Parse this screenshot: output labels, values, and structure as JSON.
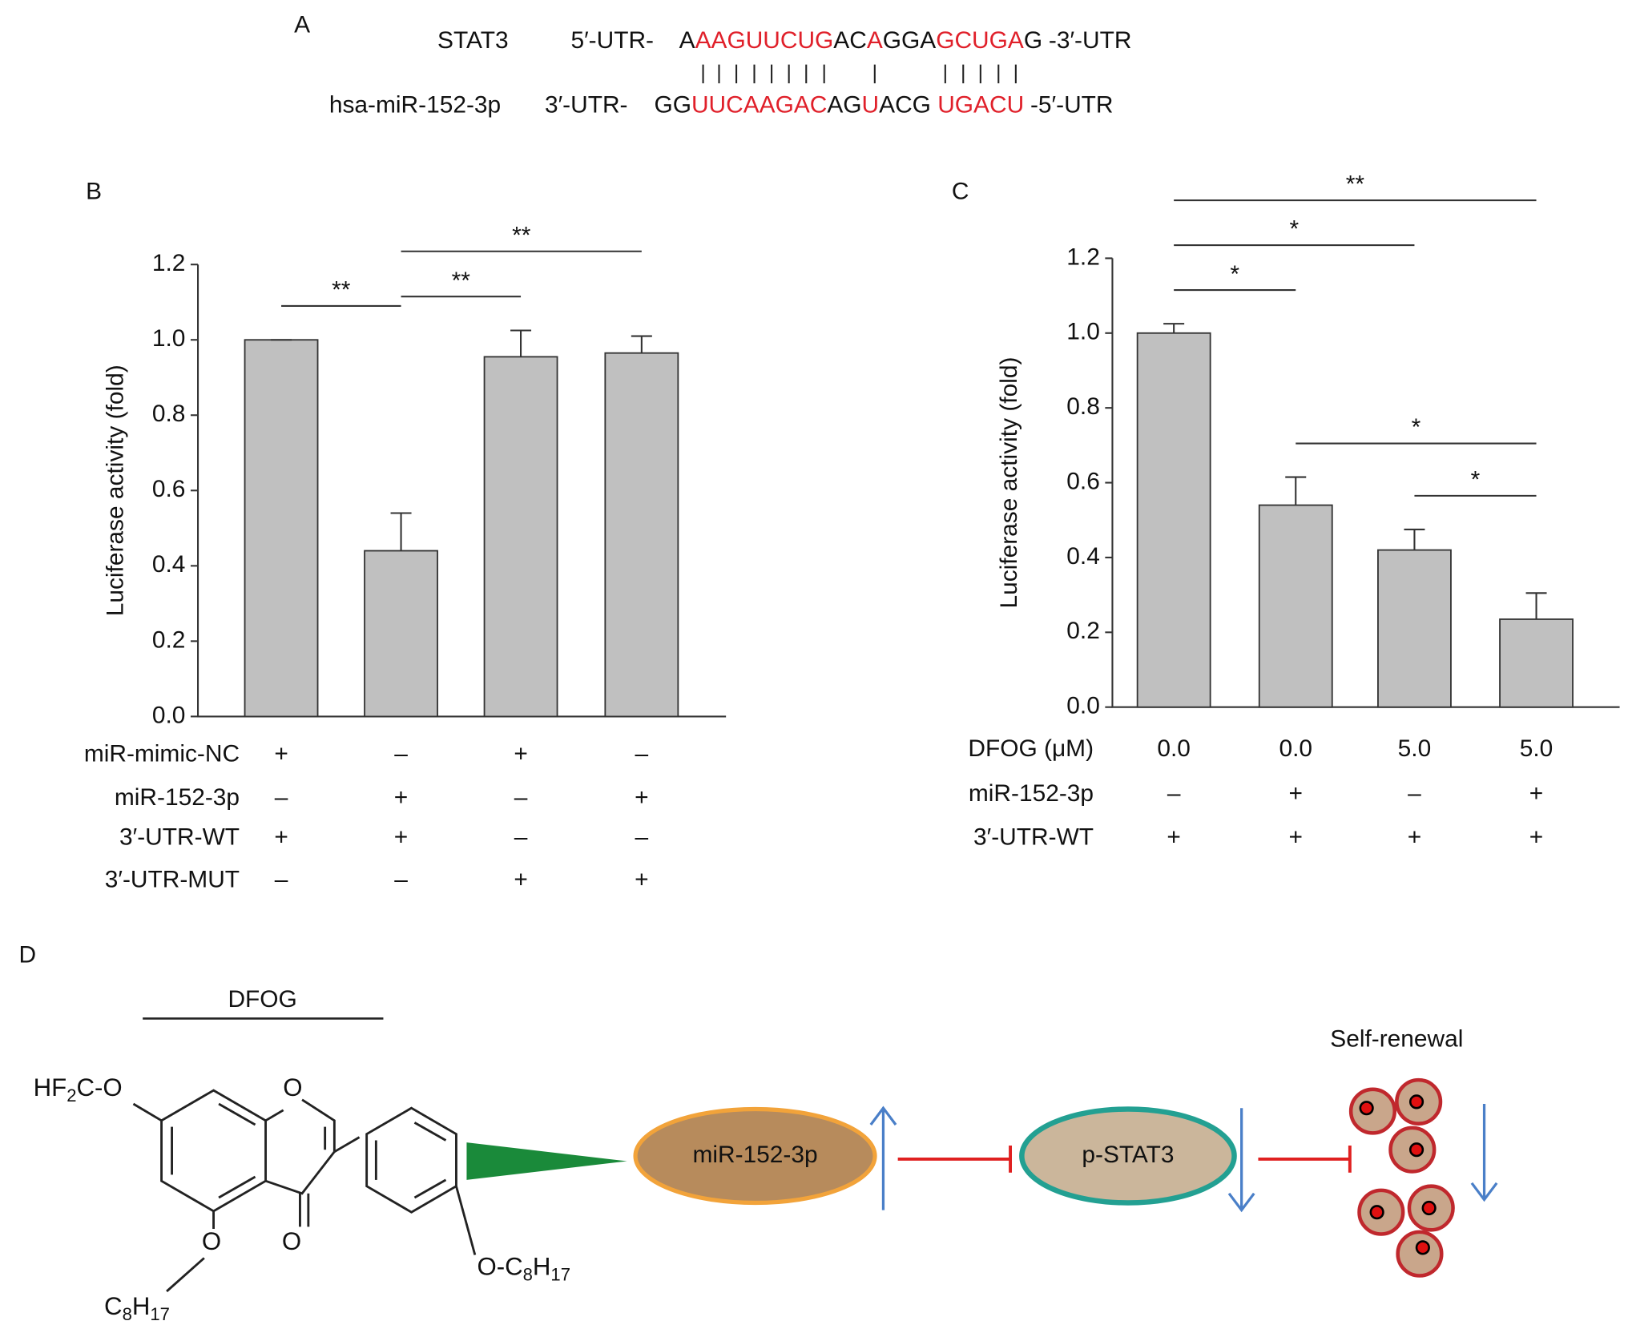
{
  "panel_a": {
    "label": "A",
    "rows": [
      {
        "name": "STAT3",
        "start": "5′-UTR-",
        "segments": [
          {
            "text": "A",
            "paired": false
          },
          {
            "text": "AAGUUCUG",
            "paired": true
          },
          {
            "text": "AC",
            "paired": false
          },
          {
            "text": "A",
            "paired": true
          },
          {
            "text": "GGA",
            "paired": false
          },
          {
            "text": "GCUGA",
            "paired": true
          },
          {
            "text": "G",
            "paired": false
          }
        ],
        "end": "-3′-UTR"
      },
      {
        "name": "hsa-miR-152-3p",
        "start": "3′-UTR-",
        "segments": [
          {
            "text": "GG",
            "paired": false
          },
          {
            "text": "UUCAAGAC",
            "paired": true
          },
          {
            "text": "AG",
            "paired": false
          },
          {
            "text": "U",
            "paired": true
          },
          {
            "text": "ACG ",
            "paired": false
          },
          {
            "text": "UGACU",
            "paired": true
          }
        ],
        "end": "-5′-UTR"
      }
    ]
  },
  "chart_data": [
    {
      "type": "bar",
      "label": "B",
      "ylabel": "Luciferase activity (fold)",
      "color": "#c0c0c0",
      "values": [
        1.0,
        0.44,
        0.955,
        0.965
      ],
      "errors": [
        0,
        0.1,
        0.07,
        0.045
      ],
      "ylim": [
        0,
        1.2
      ],
      "yticks": [
        {
          "value": 0,
          "label": "0.0"
        },
        0.2,
        0.4,
        0.6,
        0.8,
        {
          "value": 1,
          "label": "1.0"
        },
        1.2
      ],
      "conditions": [
        {
          "name": "miR-mimic-NC",
          "values": [
            "+",
            "–",
            "+",
            "–"
          ]
        },
        {
          "name": "miR-152-3p",
          "values": [
            "–",
            "+",
            "–",
            "+"
          ]
        },
        {
          "name": "3′-UTR-WT",
          "values": [
            "+",
            "+",
            "–",
            "–"
          ]
        },
        {
          "name": "3′-UTR-MUT",
          "values": [
            "–",
            "–",
            "+",
            "+"
          ]
        }
      ],
      "comparisons": [
        {
          "groups": [
            0,
            1
          ],
          "label": "**"
        },
        {
          "groups": [
            1,
            2
          ],
          "label": "**"
        },
        {
          "groups": [
            1,
            3
          ],
          "label": "**"
        }
      ]
    },
    {
      "type": "bar",
      "label": "C",
      "ylabel": "Luciferase activity (fold)",
      "color": "#c0c0c0",
      "values": [
        1.0,
        0.54,
        0.42,
        0.235
      ],
      "errors": [
        0.025,
        0.075,
        0.055,
        0.07
      ],
      "ylim": [
        0,
        1.2
      ],
      "yticks": [
        {
          "value": 0,
          "label": "0.0"
        },
        0.2,
        0.4,
        0.6,
        0.8,
        {
          "value": 1,
          "label": "1.0"
        },
        1.2
      ],
      "conditions": [
        {
          "name": "DFOG (μM)",
          "values": [
            "0.0",
            "0.0",
            "5.0",
            "5.0"
          ]
        },
        {
          "name": "miR-152-3p",
          "values": [
            "–",
            "+",
            "–",
            "+"
          ]
        },
        {
          "name": "3′-UTR-WT",
          "values": [
            "+",
            "+",
            "+",
            "+"
          ]
        }
      ],
      "comparisons": [
        {
          "groups": [
            0,
            1
          ],
          "label": "*"
        },
        {
          "groups": [
            0,
            2
          ],
          "label": "*"
        },
        {
          "groups": [
            0,
            3
          ],
          "label": "**"
        },
        {
          "groups": [
            1,
            3
          ],
          "label": "*"
        },
        {
          "groups": [
            2,
            3
          ],
          "label": "*"
        }
      ]
    }
  ],
  "panel_d": {
    "label": "D",
    "compound": "DFOG",
    "formula_labels": [
      {
        "parts": [
          "HF",
          "2",
          "C-O"
        ]
      },
      {
        "parts": [
          "O"
        ]
      },
      {
        "parts": [
          "O"
        ]
      },
      {
        "parts": [
          "O"
        ]
      },
      {
        "parts": [
          "C",
          "8",
          "H",
          "17"
        ]
      },
      {
        "parts": [
          "O-C",
          "8",
          "H",
          "17"
        ]
      }
    ],
    "nodes": [
      "miR-152-3p",
      "p-STAT3"
    ],
    "outcome": "Self-renewal"
  }
}
